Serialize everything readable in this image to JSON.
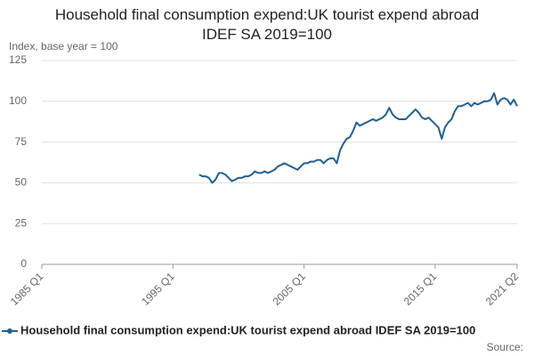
{
  "chart_data": {
    "type": "line",
    "title": "Household final consumption expend:UK tourist expend abroad IDEF SA 2019=100",
    "y_label": "Index, base year = 100",
    "source": "Source:",
    "categories": [
      "1985 Q1",
      null,
      null,
      null,
      null,
      null,
      null,
      null,
      null,
      null,
      null,
      null,
      null,
      null,
      null,
      null,
      null,
      null,
      null,
      null,
      null,
      null,
      null,
      null,
      null,
      null,
      null,
      null,
      null,
      null,
      null,
      null,
      null,
      null,
      null,
      null,
      null,
      null,
      null,
      null,
      "1995 Q1",
      null,
      null,
      null,
      null,
      null,
      null,
      null,
      null,
      null,
      null,
      null,
      null,
      null,
      null,
      null,
      null,
      null,
      null,
      null,
      null,
      null,
      null,
      null,
      null,
      null,
      null,
      null,
      null,
      null,
      null,
      null,
      null,
      null,
      null,
      null,
      null,
      null,
      null,
      null,
      "2005 Q1",
      null,
      null,
      null,
      null,
      null,
      null,
      null,
      null,
      null,
      null,
      null,
      null,
      null,
      null,
      null,
      null,
      null,
      null,
      null,
      null,
      null,
      null,
      null,
      null,
      null,
      null,
      null,
      null,
      null,
      null,
      null,
      null,
      null,
      null,
      null,
      null,
      null,
      null,
      null,
      "2015 Q1",
      null,
      null,
      null,
      null,
      null,
      null,
      null,
      null,
      null,
      null,
      null,
      null,
      null,
      null,
      null,
      null,
      null,
      null,
      null,
      null,
      null,
      null,
      null,
      null,
      "2021 Q2"
    ],
    "series": [
      {
        "name": "Household final consumption expend:UK tourist expend abroad IDEF SA 2019=100",
        "color": "#206095",
        "values": [
          null,
          null,
          null,
          null,
          null,
          null,
          null,
          null,
          null,
          null,
          null,
          null,
          null,
          null,
          null,
          null,
          null,
          null,
          null,
          null,
          null,
          null,
          null,
          null,
          null,
          null,
          null,
          null,
          null,
          null,
          null,
          null,
          null,
          null,
          null,
          null,
          null,
          null,
          null,
          null,
          null,
          null,
          null,
          null,
          null,
          null,
          null,
          null,
          55,
          54,
          54,
          53,
          50,
          52,
          56,
          56,
          55,
          53,
          51,
          52,
          53,
          53,
          54,
          54,
          55,
          57,
          56,
          56,
          57,
          56,
          57,
          58,
          60,
          61,
          62,
          61,
          60,
          59,
          58,
          60,
          62,
          62,
          63,
          63,
          64,
          64,
          62,
          64,
          65,
          65,
          62,
          70,
          74,
          77,
          78,
          82,
          87,
          85,
          86,
          87,
          88,
          89,
          88,
          89,
          90,
          92,
          96,
          92,
          90,
          89,
          89,
          89,
          91,
          93,
          95,
          93,
          90,
          89,
          90,
          88,
          86,
          84,
          77,
          84,
          87,
          89,
          94,
          97,
          97,
          98,
          99,
          97,
          99,
          98,
          99,
          100,
          100,
          101,
          105,
          98,
          101,
          102,
          101,
          98,
          101,
          97
        ]
      }
    ],
    "ylim": [
      0,
      125
    ],
    "yticks": [
      0,
      25,
      50,
      75,
      100,
      125
    ],
    "grid": true
  }
}
